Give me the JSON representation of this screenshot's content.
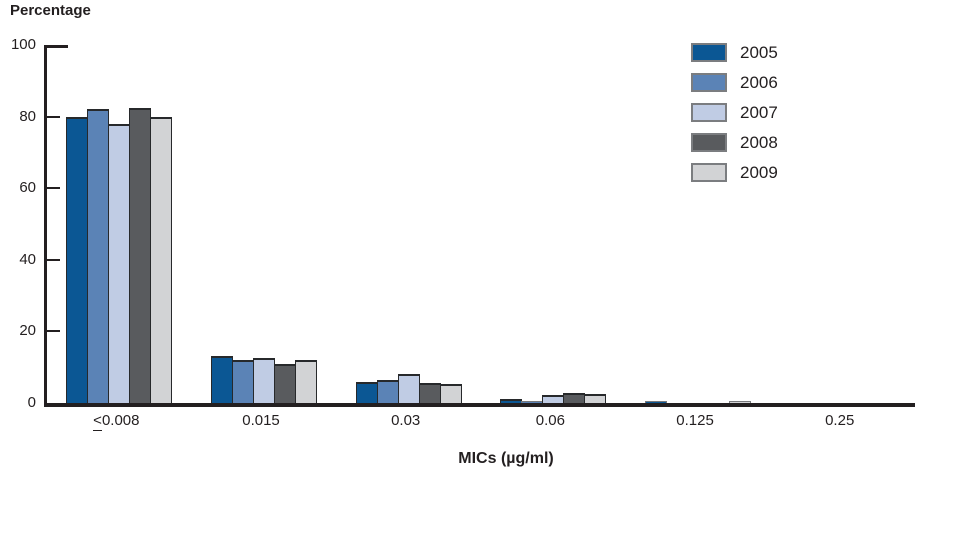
{
  "chart_title": "Percentage",
  "chart_data": {
    "type": "bar",
    "title": "Percentage",
    "xlabel": "MICs (µg/ml)",
    "ylabel": "Percentage",
    "ylim": [
      0,
      100
    ],
    "yticks": [
      0,
      20,
      40,
      60,
      80,
      100
    ],
    "grid": false,
    "legend_position": "top-right",
    "axis_color": "#231F20",
    "categories": [
      "≤0.008",
      "0.015",
      "0.03",
      "0.06",
      "0.125",
      "0.25"
    ],
    "series": [
      {
        "name": "2005",
        "color": "#0B5794",
        "values": [
          80,
          13,
          6,
          1,
          0.2,
          0
        ]
      },
      {
        "name": "2006",
        "color": "#5B83B6",
        "values": [
          82,
          12,
          6.3,
          0.4,
          0,
          0
        ]
      },
      {
        "name": "2007",
        "color": "#C0CCE4",
        "values": [
          78,
          12.5,
          8.2,
          2.2,
          0,
          0
        ]
      },
      {
        "name": "2008",
        "color": "#595B5E",
        "values": [
          82.5,
          11,
          5.5,
          2.8,
          0,
          0
        ]
      },
      {
        "name": "2009",
        "color": "#D2D3D5",
        "values": [
          80,
          12,
          5.3,
          2.5,
          0.2,
          0
        ]
      }
    ]
  }
}
